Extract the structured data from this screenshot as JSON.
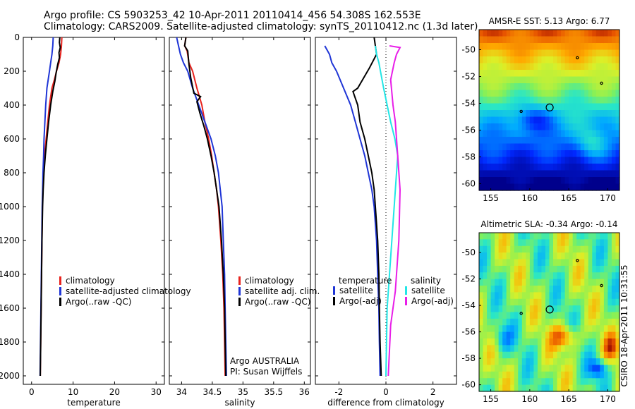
{
  "title": {
    "line1": "Argo profile: CS 5903253_42 10-Apr-2011 20110414_456 54.308S 162.553E",
    "line2": "Climatology: CARS2009. Satellite-adjusted climatology: synTS_20110412.nc (1.3d later)"
  },
  "credit": "CSIRO 18-Apr-2011 10:31:55",
  "colors": {
    "climatology": "#e8231e",
    "satellite": "#1f35d6",
    "argo": "#000000",
    "satellite_diff": "#22e6e6",
    "argo_diff": "#e81ee8"
  },
  "chart_data": [
    {
      "type": "line",
      "panel": "temperature",
      "xlabel": "temperature",
      "ylabel": "",
      "xlim": [
        -2,
        32
      ],
      "ylim": [
        2050,
        0
      ],
      "y_reversed": true,
      "xticks": [
        0,
        10,
        20,
        30
      ],
      "yticks": [
        0,
        200,
        400,
        600,
        800,
        1000,
        1200,
        1400,
        1600,
        1800,
        2000
      ],
      "series": [
        {
          "name": "climatology",
          "color": "#e8231e",
          "points": [
            [
              7.3,
              0
            ],
            [
              7.2,
              50
            ],
            [
              7.0,
              100
            ],
            [
              6.6,
              150
            ],
            [
              6.0,
              200
            ],
            [
              5.5,
              250
            ],
            [
              4.9,
              300
            ],
            [
              4.3,
              400
            ],
            [
              3.9,
              500
            ],
            [
              3.5,
              600
            ],
            [
              3.1,
              700
            ],
            [
              2.9,
              800
            ],
            [
              2.7,
              900
            ],
            [
              2.6,
              1000
            ],
            [
              2.5,
              1200
            ],
            [
              2.4,
              1400
            ],
            [
              2.3,
              1600
            ],
            [
              2.2,
              1800
            ],
            [
              2.1,
              2000
            ]
          ]
        },
        {
          "name": "satellite-adjusted climatology",
          "color": "#1f35d6",
          "points": [
            [
              5.2,
              0
            ],
            [
              5.1,
              50
            ],
            [
              4.9,
              100
            ],
            [
              4.6,
              150
            ],
            [
              4.3,
              200
            ],
            [
              4.0,
              250
            ],
            [
              3.7,
              300
            ],
            [
              3.4,
              400
            ],
            [
              3.2,
              500
            ],
            [
              3.0,
              600
            ],
            [
              2.9,
              700
            ],
            [
              2.75,
              800
            ],
            [
              2.65,
              900
            ],
            [
              2.55,
              1000
            ],
            [
              2.45,
              1200
            ],
            [
              2.35,
              1400
            ],
            [
              2.25,
              1600
            ],
            [
              2.15,
              1800
            ],
            [
              2.05,
              2000
            ]
          ]
        },
        {
          "name": "Argo(..raw -QC)",
          "color": "#000000",
          "points": [
            [
              6.8,
              0
            ],
            [
              6.7,
              30
            ],
            [
              6.9,
              60
            ],
            [
              6.6,
              90
            ],
            [
              6.7,
              120
            ],
            [
              6.3,
              160
            ],
            [
              5.9,
              210
            ],
            [
              5.6,
              260
            ],
            [
              5.1,
              320
            ],
            [
              4.6,
              400
            ],
            [
              4.1,
              500
            ],
            [
              3.7,
              600
            ],
            [
              3.3,
              700
            ],
            [
              3.0,
              800
            ],
            [
              2.8,
              900
            ],
            [
              2.65,
              1000
            ],
            [
              2.5,
              1200
            ],
            [
              2.4,
              1400
            ],
            [
              2.3,
              1600
            ],
            [
              2.2,
              1800
            ],
            [
              2.1,
              2000
            ]
          ]
        }
      ],
      "legend": [
        "climatology",
        "satellite-adjusted climatology",
        "Argo(..raw -QC)"
      ]
    },
    {
      "type": "line",
      "panel": "salinity",
      "xlabel": "salinity",
      "ylabel": "",
      "xlim": [
        33.8,
        36.1
      ],
      "ylim": [
        2050,
        0
      ],
      "y_reversed": true,
      "xticks": [
        34,
        34.5,
        35,
        35.5,
        36
      ],
      "series": [
        {
          "name": "climatology",
          "color": "#e8231e",
          "points": [
            [
              34.07,
              0
            ],
            [
              34.05,
              50
            ],
            [
              34.09,
              80
            ],
            [
              34.12,
              150
            ],
            [
              34.18,
              200
            ],
            [
              34.25,
              300
            ],
            [
              34.33,
              400
            ],
            [
              34.38,
              500
            ],
            [
              34.44,
              600
            ],
            [
              34.49,
              700
            ],
            [
              34.53,
              800
            ],
            [
              34.57,
              900
            ],
            [
              34.6,
              1000
            ],
            [
              34.64,
              1200
            ],
            [
              34.67,
              1400
            ],
            [
              34.69,
              1600
            ],
            [
              34.7,
              1800
            ],
            [
              34.71,
              2000
            ]
          ]
        },
        {
          "name": "satellite adj. clim.",
          "color": "#1f35d6",
          "points": [
            [
              33.92,
              0
            ],
            [
              33.95,
              50
            ],
            [
              33.98,
              100
            ],
            [
              34.03,
              150
            ],
            [
              34.1,
              200
            ],
            [
              34.18,
              300
            ],
            [
              34.28,
              400
            ],
            [
              34.38,
              500
            ],
            [
              34.48,
              600
            ],
            [
              34.55,
              700
            ],
            [
              34.6,
              800
            ],
            [
              34.63,
              900
            ],
            [
              34.66,
              1000
            ],
            [
              34.68,
              1200
            ],
            [
              34.7,
              1400
            ],
            [
              34.71,
              1600
            ],
            [
              34.72,
              1800
            ],
            [
              34.73,
              2000
            ]
          ]
        },
        {
          "name": "Argo(..raw -QC)",
          "color": "#000000",
          "points": [
            [
              34.07,
              0
            ],
            [
              34.05,
              50
            ],
            [
              34.1,
              80
            ],
            [
              34.12,
              160
            ],
            [
              34.15,
              240
            ],
            [
              34.2,
              330
            ],
            [
              34.31,
              350
            ],
            [
              34.25,
              380
            ],
            [
              34.3,
              450
            ],
            [
              34.36,
              520
            ],
            [
              34.42,
              600
            ],
            [
              34.48,
              700
            ],
            [
              34.53,
              800
            ],
            [
              34.57,
              900
            ],
            [
              34.61,
              1000
            ],
            [
              34.65,
              1200
            ],
            [
              34.68,
              1400
            ],
            [
              34.7,
              1600
            ],
            [
              34.71,
              1800
            ],
            [
              34.72,
              2000
            ]
          ]
        }
      ],
      "legend": [
        "climatology",
        "satellite adj. clim.",
        "Argo(..raw -QC)"
      ],
      "annotation": [
        "Argo AUSTRALIA",
        "PI: Susan Wijffels"
      ]
    },
    {
      "type": "line",
      "panel": "difference",
      "xlabel": "difference from climatology",
      "ylabel": "",
      "xlim": [
        -3,
        3
      ],
      "ylim": [
        2050,
        0
      ],
      "y_reversed": true,
      "xticks": [
        -2,
        0,
        2
      ],
      "zero_line": true,
      "series": [
        {
          "name": "temperature satellite",
          "color": "#1f35d6",
          "points": [
            [
              -2.6,
              50
            ],
            [
              -2.4,
              100
            ],
            [
              -2.3,
              150
            ],
            [
              -2.1,
              200
            ],
            [
              -1.8,
              300
            ],
            [
              -1.5,
              400
            ],
            [
              -1.3,
              500
            ],
            [
              -1.1,
              600
            ],
            [
              -0.9,
              700
            ],
            [
              -0.75,
              800
            ],
            [
              -0.6,
              900
            ],
            [
              -0.5,
              1000
            ],
            [
              -0.4,
              1200
            ],
            [
              -0.35,
              1400
            ],
            [
              -0.3,
              1600
            ],
            [
              -0.28,
              1800
            ],
            [
              -0.25,
              2000
            ]
          ]
        },
        {
          "name": "temperature Argo(-adj)",
          "color": "#000000",
          "points": [
            [
              -0.5,
              0
            ],
            [
              -0.45,
              50
            ],
            [
              -0.4,
              100
            ],
            [
              -0.7,
              180
            ],
            [
              -1.2,
              300
            ],
            [
              -1.4,
              320
            ],
            [
              -1.2,
              400
            ],
            [
              -1.1,
              500
            ],
            [
              -0.9,
              600
            ],
            [
              -0.75,
              700
            ],
            [
              -0.6,
              800
            ],
            [
              -0.5,
              900
            ],
            [
              -0.45,
              1000
            ],
            [
              -0.35,
              1200
            ],
            [
              -0.3,
              1400
            ],
            [
              -0.28,
              1600
            ],
            [
              -0.25,
              1800
            ],
            [
              -0.2,
              2000
            ]
          ]
        },
        {
          "name": "salinity satellite",
          "color": "#22e6e6",
          "points": [
            [
              -0.45,
              50
            ],
            [
              -0.4,
              100
            ],
            [
              -0.3,
              150
            ],
            [
              -0.1,
              300
            ],
            [
              0.2,
              500
            ],
            [
              0.38,
              600
            ],
            [
              0.5,
              700
            ],
            [
              0.45,
              800
            ],
            [
              0.35,
              1000
            ],
            [
              0.2,
              1300
            ],
            [
              0.05,
              1600
            ],
            [
              0.0,
              2000
            ]
          ]
        },
        {
          "name": "salinity Argo(-adj)",
          "color": "#e81ee8",
          "points": [
            [
              0.15,
              50
            ],
            [
              0.6,
              60
            ],
            [
              0.45,
              100
            ],
            [
              0.35,
              150
            ],
            [
              0.2,
              250
            ],
            [
              0.3,
              400
            ],
            [
              0.4,
              500
            ],
            [
              0.5,
              700
            ],
            [
              0.6,
              900
            ],
            [
              0.55,
              1200
            ],
            [
              0.4,
              1500
            ],
            [
              0.2,
              1700
            ],
            [
              0.1,
              2000
            ]
          ]
        }
      ],
      "legend_left": {
        "heading": "temperature",
        "items": [
          "satellite",
          "Argo(-adj)"
        ]
      },
      "legend_right": {
        "heading": "salinity",
        "items": [
          "satellite",
          "Argo(-adj)"
        ]
      }
    },
    {
      "type": "heatmap",
      "panel": "sst_map",
      "title": "AMSR-E SST: 5.13 Argo: 6.77",
      "xlim": [
        153.5,
        171.5
      ],
      "ylim": [
        -60.5,
        -48.5
      ],
      "xticks": [
        155,
        160,
        165,
        170
      ],
      "yticks": [
        -50,
        -52,
        -54,
        -56,
        -58,
        -60
      ],
      "profile_location": [
        162.553,
        -54.308
      ]
    },
    {
      "type": "heatmap",
      "panel": "sla_map",
      "title": "Altimetric SLA: -0.34 Argo: -0.14",
      "xlim": [
        153.5,
        171.5
      ],
      "ylim": [
        -60.5,
        -48.5
      ],
      "xticks": [
        155,
        160,
        165,
        170
      ],
      "yticks": [
        -50,
        -52,
        -54,
        -56,
        -58,
        -60
      ],
      "profile_location": [
        162.553,
        -54.308
      ]
    }
  ]
}
